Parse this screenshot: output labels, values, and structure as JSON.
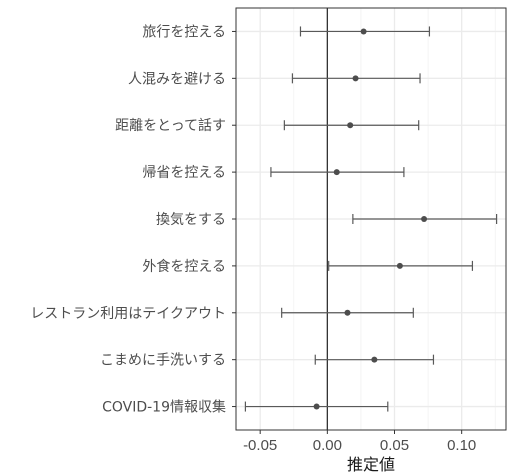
{
  "chart_data": {
    "type": "scatter",
    "subtype": "point-range",
    "title": "",
    "xlabel": "推定値",
    "ylabel": "",
    "xlim": [
      -0.068,
      0.133
    ],
    "x_ticks": [
      -0.05,
      0.0,
      0.05,
      0.1
    ],
    "x_tick_labels": [
      "-0.05",
      "0.00",
      "0.05",
      "0.10"
    ],
    "reference_line_x": 0,
    "grid": true,
    "legend": "none",
    "colors": {
      "point": "#4d4d4d",
      "errorbar": "#595959",
      "grid": "#ebebeb",
      "zero_line": "#333333",
      "text": "#4d4d4d"
    },
    "categories": [
      "旅行を控える",
      "人混みを避ける",
      "距離をとって話す",
      "帰省を控える",
      "換気をする",
      "外食を控える",
      "レストラン利用はテイクアウト",
      "こまめに手洗いする",
      "COVID-19情報収集"
    ],
    "estimates": [
      0.027,
      0.021,
      0.017,
      0.007,
      0.072,
      0.054,
      0.015,
      0.035,
      -0.008
    ],
    "lower": [
      -0.02,
      -0.026,
      -0.032,
      -0.042,
      0.019,
      0.001,
      -0.034,
      -0.009,
      -0.061
    ],
    "upper": [
      0.076,
      0.069,
      0.068,
      0.057,
      0.126,
      0.108,
      0.064,
      0.079,
      0.045
    ]
  }
}
